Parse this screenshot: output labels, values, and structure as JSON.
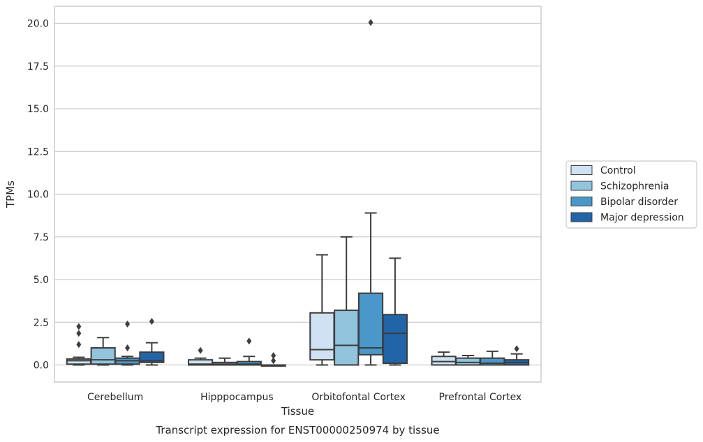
{
  "chart_data": {
    "type": "box",
    "title": "",
    "caption": "Transcript expression for ENST00000250974 by tissue",
    "xlabel": "Tissue",
    "ylabel": "TPMs",
    "ylim": [
      -1.0,
      21.0
    ],
    "yticks": [
      "0.0",
      "2.5",
      "5.0",
      "7.5",
      "10.0",
      "12.5",
      "15.0",
      "17.5",
      "20.0"
    ],
    "grid": "horizontal",
    "legend_position": "right",
    "categories": [
      "Cerebellum",
      "Hipppocampus",
      "Orbitofontal Cortex",
      "Prefrontal Cortex"
    ],
    "series": [
      {
        "name": "Control",
        "color": "#cfe1f2",
        "boxes": [
          {
            "q1": 0.05,
            "median": 0.25,
            "q3": 0.35,
            "whisker_low": 0.0,
            "whisker_high": 0.45,
            "outliers": [
              1.2,
              1.85,
              2.25
            ]
          },
          {
            "q1": 0.0,
            "median": 0.05,
            "q3": 0.3,
            "whisker_low": 0.0,
            "whisker_high": 0.4,
            "outliers": [
              0.85
            ]
          },
          {
            "q1": 0.3,
            "median": 0.9,
            "q3": 3.05,
            "whisker_low": 0.0,
            "whisker_high": 6.45,
            "outliers": []
          },
          {
            "q1": 0.0,
            "median": 0.2,
            "q3": 0.5,
            "whisker_low": 0.0,
            "whisker_high": 0.75,
            "outliers": []
          }
        ]
      },
      {
        "name": "Schizophrenia",
        "color": "#93c4de",
        "boxes": [
          {
            "q1": 0.05,
            "median": 0.3,
            "q3": 1.0,
            "whisker_low": 0.0,
            "whisker_high": 1.6,
            "outliers": []
          },
          {
            "q1": 0.0,
            "median": 0.05,
            "q3": 0.15,
            "whisker_low": 0.0,
            "whisker_high": 0.4,
            "outliers": []
          },
          {
            "q1": 0.0,
            "median": 1.15,
            "q3": 3.2,
            "whisker_low": 0.0,
            "whisker_high": 7.5,
            "outliers": []
          },
          {
            "q1": 0.0,
            "median": 0.15,
            "q3": 0.4,
            "whisker_low": 0.0,
            "whisker_high": 0.55,
            "outliers": []
          }
        ]
      },
      {
        "name": "Bipolar disorder",
        "color": "#4a98c9",
        "boxes": [
          {
            "q1": 0.05,
            "median": 0.25,
            "q3": 0.4,
            "whisker_low": 0.0,
            "whisker_high": 0.5,
            "outliers": [
              1.0,
              2.4
            ]
          },
          {
            "q1": 0.0,
            "median": 0.05,
            "q3": 0.2,
            "whisker_low": 0.0,
            "whisker_high": 0.5,
            "outliers": [
              1.4
            ]
          },
          {
            "q1": 0.6,
            "median": 1.0,
            "q3": 4.2,
            "whisker_low": 0.0,
            "whisker_high": 8.9,
            "outliers": [
              20.05
            ]
          },
          {
            "q1": 0.0,
            "median": 0.1,
            "q3": 0.4,
            "whisker_low": 0.0,
            "whisker_high": 0.8,
            "outliers": []
          }
        ]
      },
      {
        "name": "Major depression",
        "color": "#2264a8",
        "boxes": [
          {
            "q1": 0.15,
            "median": 0.25,
            "q3": 0.75,
            "whisker_low": 0.0,
            "whisker_high": 1.3,
            "outliers": [
              2.55
            ]
          },
          {
            "q1": 0.0,
            "median": 0.0,
            "q3": 0.0,
            "whisker_low": 0.0,
            "whisker_high": 0.0,
            "outliers": [
              0.25,
              0.55
            ]
          },
          {
            "q1": 0.1,
            "median": 1.85,
            "q3": 2.95,
            "whisker_low": 0.0,
            "whisker_high": 6.25,
            "outliers": []
          },
          {
            "q1": 0.0,
            "median": 0.15,
            "q3": 0.3,
            "whisker_low": 0.0,
            "whisker_high": 0.65,
            "outliers": [
              0.95
            ]
          }
        ]
      }
    ]
  }
}
